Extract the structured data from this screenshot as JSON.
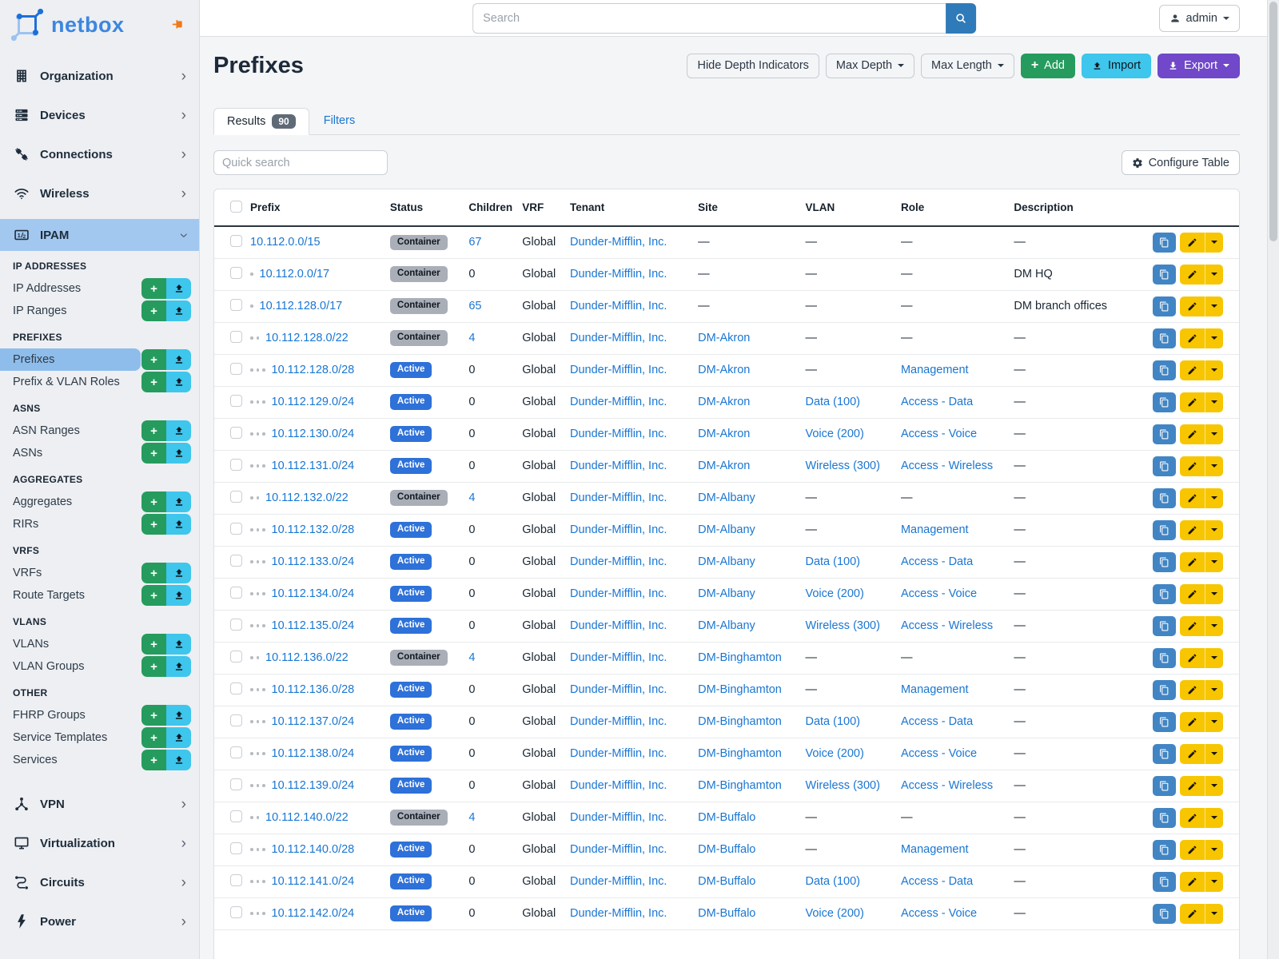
{
  "colors": {
    "link_blue": "#1a76d2",
    "active_badge_blue": "#2e71d8",
    "container_badge_gray": "#a9aeb7",
    "green": "#259c5d",
    "cyan": "#3ec6ec",
    "purple": "#7048c9",
    "yellow": "#f7c600",
    "clone_blue": "#4285c4",
    "search_blue": "#2f7bb9",
    "sidebar_highlight": "#a2c8f0",
    "active_item_highlight": "#8fbdeb",
    "pin_orange": "#f07818",
    "logo_blue": "#3b87e0"
  },
  "sidebar": {
    "logo_text": "netbox",
    "top_items": [
      {
        "label": "Organization",
        "icon": "organization"
      },
      {
        "label": "Devices",
        "icon": "devices"
      },
      {
        "label": "Connections",
        "icon": "connections"
      },
      {
        "label": "Wireless",
        "icon": "wireless"
      }
    ],
    "ipam": {
      "label": "IPAM",
      "icon": "counter"
    },
    "sections": [
      {
        "header": "IP ADDRESSES",
        "items": [
          {
            "label": "IP Addresses"
          },
          {
            "label": "IP Ranges"
          }
        ]
      },
      {
        "header": "PREFIXES",
        "items": [
          {
            "label": "Prefixes",
            "active": true
          },
          {
            "label": "Prefix & VLAN Roles"
          }
        ]
      },
      {
        "header": "ASNS",
        "items": [
          {
            "label": "ASN Ranges"
          },
          {
            "label": "ASNs"
          }
        ]
      },
      {
        "header": "AGGREGATES",
        "items": [
          {
            "label": "Aggregates"
          },
          {
            "label": "RIRs"
          }
        ]
      },
      {
        "header": "VRFS",
        "items": [
          {
            "label": "VRFs"
          },
          {
            "label": "Route Targets"
          }
        ]
      },
      {
        "header": "VLANS",
        "items": [
          {
            "label": "VLANs"
          },
          {
            "label": "VLAN Groups"
          }
        ]
      },
      {
        "header": "OTHER",
        "items": [
          {
            "label": "FHRP Groups"
          },
          {
            "label": "Service Templates"
          },
          {
            "label": "Services"
          }
        ]
      }
    ],
    "bottom_items": [
      {
        "label": "VPN",
        "icon": "vpn"
      },
      {
        "label": "Virtualization",
        "icon": "virtualization"
      },
      {
        "label": "Circuits",
        "icon": "circuits"
      },
      {
        "label": "Power",
        "icon": "power"
      }
    ]
  },
  "topbar": {
    "search_placeholder": "Search",
    "user": "admin"
  },
  "page": {
    "title": "Prefixes",
    "hide_depth_label": "Hide Depth Indicators",
    "max_depth_label": "Max Depth",
    "max_length_label": "Max Length",
    "add_label": "Add",
    "import_label": "Import",
    "export_label": "Export"
  },
  "tabs": {
    "results_label": "Results",
    "results_count": "90",
    "filters_label": "Filters"
  },
  "toolbar": {
    "quick_search_placeholder": "Quick search",
    "configure_label": "Configure Table"
  },
  "table": {
    "columns": [
      "Prefix",
      "Status",
      "Children",
      "VRF",
      "Tenant",
      "Site",
      "VLAN",
      "Role",
      "Description"
    ],
    "empty_cell": "—",
    "rows": [
      {
        "depth": 0,
        "prefix": "10.112.0.0/15",
        "status": "Container",
        "children": "67",
        "children_link": true,
        "vrf": "Global",
        "tenant": "Dunder-Mifflin, Inc.",
        "site": "",
        "vlan": "",
        "role": "",
        "description": ""
      },
      {
        "depth": 1,
        "prefix": "10.112.0.0/17",
        "status": "Container",
        "children": "0",
        "children_link": false,
        "vrf": "Global",
        "tenant": "Dunder-Mifflin, Inc.",
        "site": "",
        "vlan": "",
        "role": "",
        "description": "DM HQ"
      },
      {
        "depth": 1,
        "prefix": "10.112.128.0/17",
        "status": "Container",
        "children": "65",
        "children_link": true,
        "vrf": "Global",
        "tenant": "Dunder-Mifflin, Inc.",
        "site": "",
        "vlan": "",
        "role": "",
        "description": "DM branch offices"
      },
      {
        "depth": 2,
        "prefix": "10.112.128.0/22",
        "status": "Container",
        "children": "4",
        "children_link": true,
        "vrf": "Global",
        "tenant": "Dunder-Mifflin, Inc.",
        "site": "DM-Akron",
        "vlan": "",
        "role": "",
        "description": ""
      },
      {
        "depth": 3,
        "prefix": "10.112.128.0/28",
        "status": "Active",
        "children": "0",
        "children_link": false,
        "vrf": "Global",
        "tenant": "Dunder-Mifflin, Inc.",
        "site": "DM-Akron",
        "vlan": "",
        "role": "Management",
        "description": ""
      },
      {
        "depth": 3,
        "prefix": "10.112.129.0/24",
        "status": "Active",
        "children": "0",
        "children_link": false,
        "vrf": "Global",
        "tenant": "Dunder-Mifflin, Inc.",
        "site": "DM-Akron",
        "vlan": "Data (100)",
        "role": "Access - Data",
        "description": ""
      },
      {
        "depth": 3,
        "prefix": "10.112.130.0/24",
        "status": "Active",
        "children": "0",
        "children_link": false,
        "vrf": "Global",
        "tenant": "Dunder-Mifflin, Inc.",
        "site": "DM-Akron",
        "vlan": "Voice (200)",
        "role": "Access - Voice",
        "description": ""
      },
      {
        "depth": 3,
        "prefix": "10.112.131.0/24",
        "status": "Active",
        "children": "0",
        "children_link": false,
        "vrf": "Global",
        "tenant": "Dunder-Mifflin, Inc.",
        "site": "DM-Akron",
        "vlan": "Wireless (300)",
        "role": "Access - Wireless",
        "description": ""
      },
      {
        "depth": 2,
        "prefix": "10.112.132.0/22",
        "status": "Container",
        "children": "4",
        "children_link": true,
        "vrf": "Global",
        "tenant": "Dunder-Mifflin, Inc.",
        "site": "DM-Albany",
        "vlan": "",
        "role": "",
        "description": ""
      },
      {
        "depth": 3,
        "prefix": "10.112.132.0/28",
        "status": "Active",
        "children": "0",
        "children_link": false,
        "vrf": "Global",
        "tenant": "Dunder-Mifflin, Inc.",
        "site": "DM-Albany",
        "vlan": "",
        "role": "Management",
        "description": ""
      },
      {
        "depth": 3,
        "prefix": "10.112.133.0/24",
        "status": "Active",
        "children": "0",
        "children_link": false,
        "vrf": "Global",
        "tenant": "Dunder-Mifflin, Inc.",
        "site": "DM-Albany",
        "vlan": "Data (100)",
        "role": "Access - Data",
        "description": ""
      },
      {
        "depth": 3,
        "prefix": "10.112.134.0/24",
        "status": "Active",
        "children": "0",
        "children_link": false,
        "vrf": "Global",
        "tenant": "Dunder-Mifflin, Inc.",
        "site": "DM-Albany",
        "vlan": "Voice (200)",
        "role": "Access - Voice",
        "description": ""
      },
      {
        "depth": 3,
        "prefix": "10.112.135.0/24",
        "status": "Active",
        "children": "0",
        "children_link": false,
        "vrf": "Global",
        "tenant": "Dunder-Mifflin, Inc.",
        "site": "DM-Albany",
        "vlan": "Wireless (300)",
        "role": "Access - Wireless",
        "description": ""
      },
      {
        "depth": 2,
        "prefix": "10.112.136.0/22",
        "status": "Container",
        "children": "4",
        "children_link": true,
        "vrf": "Global",
        "tenant": "Dunder-Mifflin, Inc.",
        "site": "DM-Binghamton",
        "vlan": "",
        "role": "",
        "description": ""
      },
      {
        "depth": 3,
        "prefix": "10.112.136.0/28",
        "status": "Active",
        "children": "0",
        "children_link": false,
        "vrf": "Global",
        "tenant": "Dunder-Mifflin, Inc.",
        "site": "DM-Binghamton",
        "vlan": "",
        "role": "Management",
        "description": ""
      },
      {
        "depth": 3,
        "prefix": "10.112.137.0/24",
        "status": "Active",
        "children": "0",
        "children_link": false,
        "vrf": "Global",
        "tenant": "Dunder-Mifflin, Inc.",
        "site": "DM-Binghamton",
        "vlan": "Data (100)",
        "role": "Access - Data",
        "description": ""
      },
      {
        "depth": 3,
        "prefix": "10.112.138.0/24",
        "status": "Active",
        "children": "0",
        "children_link": false,
        "vrf": "Global",
        "tenant": "Dunder-Mifflin, Inc.",
        "site": "DM-Binghamton",
        "vlan": "Voice (200)",
        "role": "Access - Voice",
        "description": ""
      },
      {
        "depth": 3,
        "prefix": "10.112.139.0/24",
        "status": "Active",
        "children": "0",
        "children_link": false,
        "vrf": "Global",
        "tenant": "Dunder-Mifflin, Inc.",
        "site": "DM-Binghamton",
        "vlan": "Wireless (300)",
        "role": "Access - Wireless",
        "description": ""
      },
      {
        "depth": 2,
        "prefix": "10.112.140.0/22",
        "status": "Container",
        "children": "4",
        "children_link": true,
        "vrf": "Global",
        "tenant": "Dunder-Mifflin, Inc.",
        "site": "DM-Buffalo",
        "vlan": "",
        "role": "",
        "description": ""
      },
      {
        "depth": 3,
        "prefix": "10.112.140.0/28",
        "status": "Active",
        "children": "0",
        "children_link": false,
        "vrf": "Global",
        "tenant": "Dunder-Mifflin, Inc.",
        "site": "DM-Buffalo",
        "vlan": "",
        "role": "Management",
        "description": ""
      },
      {
        "depth": 3,
        "prefix": "10.112.141.0/24",
        "status": "Active",
        "children": "0",
        "children_link": false,
        "vrf": "Global",
        "tenant": "Dunder-Mifflin, Inc.",
        "site": "DM-Buffalo",
        "vlan": "Data (100)",
        "role": "Access - Data",
        "description": ""
      },
      {
        "depth": 3,
        "prefix": "10.112.142.0/24",
        "status": "Active",
        "children": "0",
        "children_link": false,
        "vrf": "Global",
        "tenant": "Dunder-Mifflin, Inc.",
        "site": "DM-Buffalo",
        "vlan": "Voice (200)",
        "role": "Access - Voice",
        "description": ""
      }
    ]
  }
}
